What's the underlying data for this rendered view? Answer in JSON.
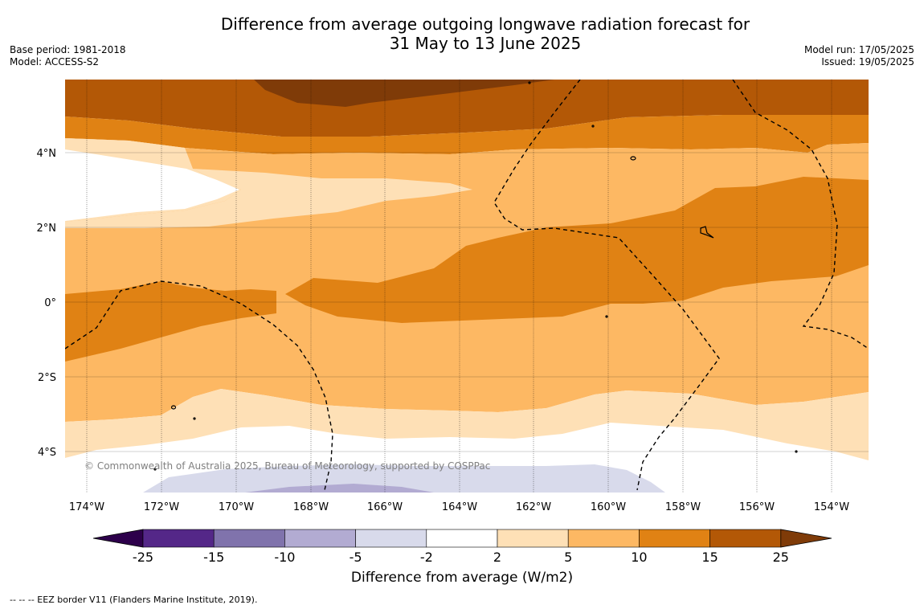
{
  "title": {
    "line1": "Difference from average outgoing longwave radiation forecast for",
    "line2": "31 May to 13 June 2025"
  },
  "meta_left": {
    "base_period": "Base period: 1981-2018",
    "model": "Model: ACCESS-S2"
  },
  "meta_right": {
    "model_run": "Model run: 17/05/2025",
    "issued": "Issued: 19/05/2025"
  },
  "map": {
    "lat_labels": [
      "4°N",
      "2°N",
      "0°",
      "2°S",
      "4°S"
    ],
    "lon_labels": [
      "174°W",
      "172°W",
      "170°W",
      "168°W",
      "166°W",
      "164°W",
      "162°W",
      "160°W",
      "158°W",
      "156°W",
      "154°W"
    ],
    "copyright": "© Commonwealth of Australia 2025, Bureau of Meteorology, supported by COSPPac"
  },
  "colorbar": {
    "ticks": [
      "-25",
      "-15",
      "-10",
      "-5",
      "-2",
      "2",
      "5",
      "10",
      "15",
      "25"
    ],
    "colors": [
      "#542788",
      "#8073ac",
      "#b2abd2",
      "#d8daeb",
      "#ffffff",
      "#fee0b6",
      "#fdb863",
      "#e08214",
      "#b35806"
    ],
    "min_extend_color": "#2d004b",
    "max_extend_color": "#7f3b08",
    "label": "Difference from average (W/m2)"
  },
  "footer": "--  --  -- EEZ border V11 (Flanders Marine Institute, 2019)."
}
